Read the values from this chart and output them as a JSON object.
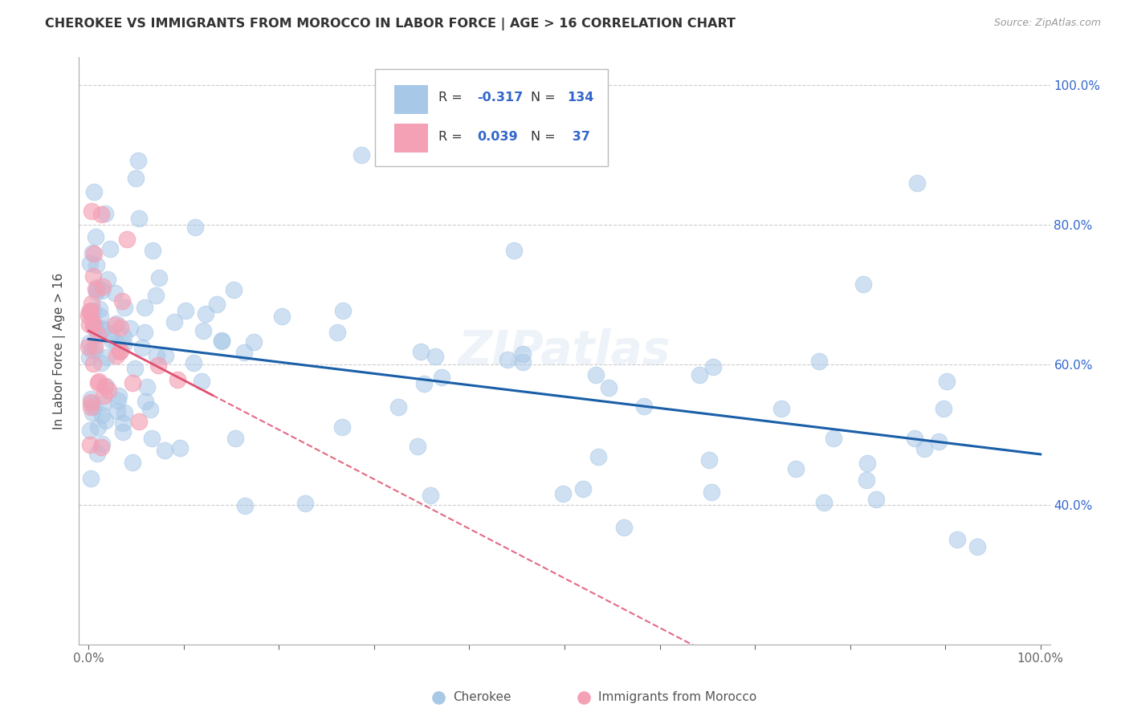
{
  "title": "CHEROKEE VS IMMIGRANTS FROM MOROCCO IN LABOR FORCE | AGE > 16 CORRELATION CHART",
  "source": "Source: ZipAtlas.com",
  "ylabel": "In Labor Force | Age > 16",
  "blue_color": "#A8C8E8",
  "pink_color": "#F4A0B5",
  "blue_line_color": "#1A5FA8",
  "pink_line_color": "#E05070",
  "background_color": "#FFFFFF",
  "grid_color": "#CCCCCC",
  "watermark": "ZIPatlas",
  "legend_blue_r": "-0.317",
  "legend_blue_n": "134",
  "legend_pink_r": "0.039",
  "legend_pink_n": "37"
}
